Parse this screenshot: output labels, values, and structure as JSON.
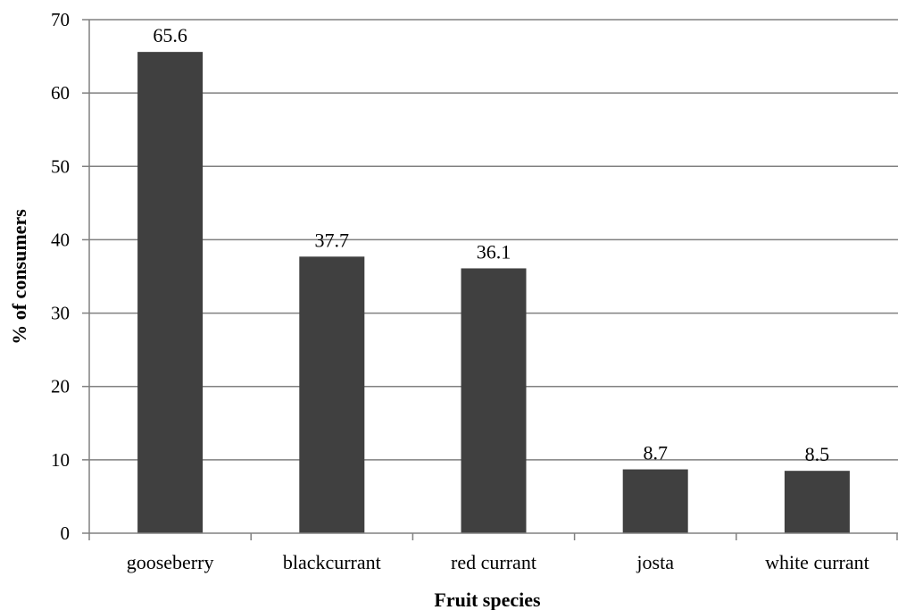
{
  "chart_data": {
    "type": "bar",
    "categories": [
      "gooseberry",
      "blackcurrant",
      "red currant",
      "josta",
      "white currant"
    ],
    "values": [
      65.6,
      37.7,
      36.1,
      8.7,
      8.5
    ],
    "data_labels": [
      "65.6",
      "37.7",
      "36.1",
      "8.7",
      "8.5"
    ],
    "xlabel": "Fruit species",
    "ylabel": "% of consumers",
    "ylim": [
      0,
      70
    ],
    "yticks": [
      0,
      10,
      20,
      30,
      40,
      50,
      60,
      70
    ],
    "grid": true,
    "bar_color": "#404040",
    "grid_color": "#808080"
  }
}
